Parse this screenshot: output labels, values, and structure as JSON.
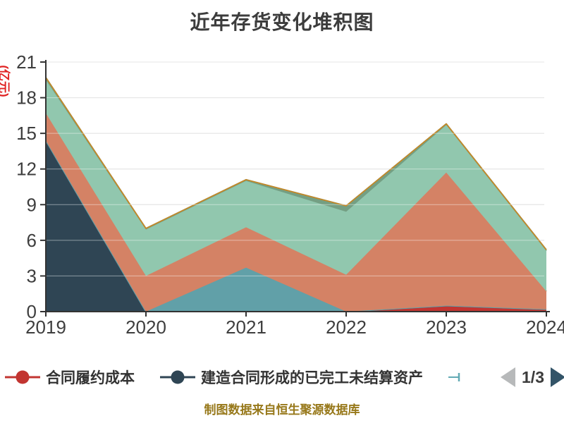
{
  "title": "近年存货变化堆积图",
  "y_axis": {
    "name": "(亿元)",
    "name_color": "#e02222",
    "ticks": [
      "0",
      "3",
      "6",
      "9",
      "12",
      "15",
      "18",
      "21"
    ]
  },
  "x_axis": {
    "ticks": [
      "2019",
      "2020",
      "2021",
      "2022",
      "2023",
      "2024"
    ]
  },
  "legend": {
    "items": [
      {
        "label": "合同履约成本",
        "color": "#c23531"
      },
      {
        "label": "建造合同形成的已完工未结算资产",
        "color": "#2f4554"
      }
    ],
    "next_item_marker_color": "#62aab4",
    "pager": {
      "label": "1/3",
      "prev_color": "#b7b9ba",
      "next_color": "#335468"
    }
  },
  "footer": {
    "text": "制图数据来自恒生聚源数据库",
    "color": "#97781a"
  },
  "chart_data": {
    "type": "area",
    "stacked": true,
    "grid": true,
    "x": [
      2019,
      2020,
      2021,
      2022,
      2023,
      2024
    ],
    "ylabel": "(亿元)",
    "ylim": [
      0,
      21
    ],
    "y_interval": 3,
    "series": [
      {
        "name": "合同履约成本",
        "color": "#c23531",
        "values": [
          0,
          0,
          0,
          0,
          0.5,
          0.2
        ]
      },
      {
        "name": "建造合同形成的已完工未结算资产",
        "color": "#2f4554",
        "values": [
          14.4,
          0,
          0,
          0,
          0,
          0
        ]
      },
      {
        "name": "",
        "color": "#61a0a8",
        "values": [
          0,
          0,
          3.7,
          0,
          0,
          0
        ]
      },
      {
        "name": "",
        "color": "#d48265",
        "values": [
          2.3,
          3.0,
          3.4,
          3.1,
          11.2,
          1.5
        ]
      },
      {
        "name": "",
        "color": "#91c7ae",
        "values": [
          2.8,
          3.9,
          3.9,
          5.3,
          4.0,
          3.4
        ]
      },
      {
        "name": "",
        "color": "#749f83",
        "values": [
          0.2,
          0.1,
          0.1,
          0.5,
          0.1,
          0.1
        ]
      },
      {
        "name": "",
        "color": "#ca8622",
        "values": [
          0,
          0,
          0,
          0,
          0,
          0
        ]
      }
    ]
  }
}
